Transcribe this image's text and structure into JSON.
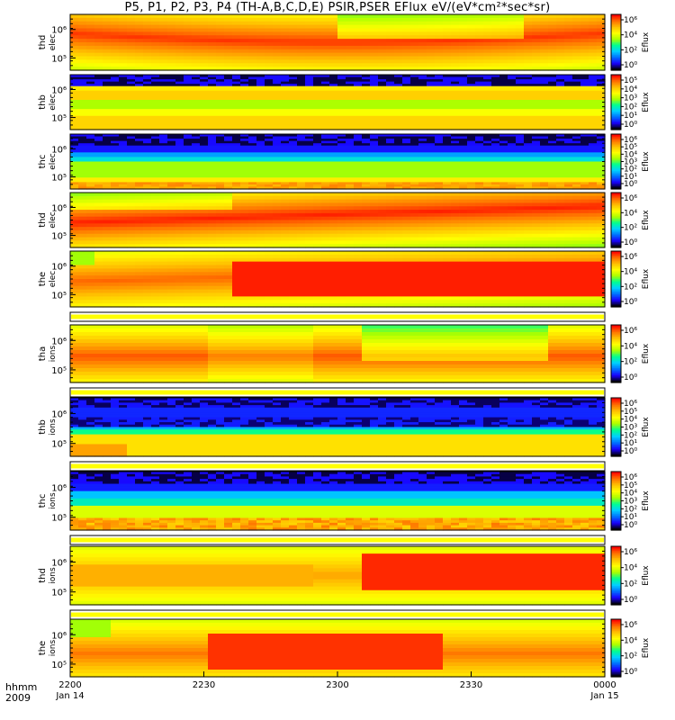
{
  "title": "P5, P1, P2, P3, P4 (TH-A,B,C,D,E) PSIR,PSER EFlux eV/(eV*cm²*sec*sr)",
  "colors": {
    "palette": [
      "#000000",
      "#1a00ff",
      "#0070ff",
      "#00d0ff",
      "#00ff90",
      "#aaff00",
      "#ffff00",
      "#ffc000",
      "#ff7000",
      "#ff0000"
    ]
  },
  "chart_data": {
    "type": "heatmap",
    "x_ticks": [
      "2200",
      "2230",
      "2300",
      "2330",
      "0000"
    ],
    "x_tick_sub": [
      "Jan 14",
      "",
      "",
      "",
      "Jan 15"
    ],
    "x_label_rows": [
      "hhmm",
      "2009"
    ],
    "colorbar_label": "Eflux",
    "panels": [
      {
        "ylabel": [
          "thd",
          "elec"
        ],
        "y_ticks": [
          "10⁶",
          "10⁵"
        ],
        "cbar_ticks": [
          "10⁶",
          "10⁴",
          "10²",
          "10⁰"
        ],
        "pattern": "elec-a",
        "bar_after": false
      },
      {
        "ylabel": [
          "thb",
          "elec"
        ],
        "y_ticks": [
          "10⁶",
          "10⁵"
        ],
        "cbar_ticks": [
          "10⁵",
          "10⁴",
          "10³",
          "10²",
          "10¹",
          "10⁰"
        ],
        "pattern": "noisy-b",
        "bar_after": false
      },
      {
        "ylabel": [
          "thc",
          "elec"
        ],
        "y_ticks": [
          "10⁶",
          "10⁵"
        ],
        "cbar_ticks": [
          "10⁶",
          "10⁵",
          "10⁴",
          "10³",
          "10²",
          "10¹",
          "10⁰"
        ],
        "pattern": "noisy-c",
        "bar_after": false
      },
      {
        "ylabel": [
          "thd",
          "elec"
        ],
        "y_ticks": [
          "10⁶",
          "10⁵"
        ],
        "cbar_ticks": [
          "10⁶",
          "10⁴",
          "10²",
          "10⁰"
        ],
        "pattern": "elec-d",
        "bar_after": false
      },
      {
        "ylabel": [
          "the",
          "elec"
        ],
        "y_ticks": [
          "10⁶",
          "10⁵"
        ],
        "cbar_ticks": [
          "10⁶",
          "10⁴",
          "10²",
          "10⁰"
        ],
        "pattern": "elec-e",
        "bar_after": true
      },
      {
        "ylabel": [
          "tha",
          "ions"
        ],
        "y_ticks": [
          "10⁶",
          "10⁵"
        ],
        "cbar_ticks": [
          "10⁶",
          "10⁴",
          "10²",
          "10⁰"
        ],
        "pattern": "ions-a",
        "bar_after": true
      },
      {
        "ylabel": [
          "thb",
          "ions"
        ],
        "y_ticks": [
          "10⁶",
          "10⁵"
        ],
        "cbar_ticks": [
          "10⁶",
          "10⁵",
          "10⁴",
          "10³",
          "10²",
          "10¹",
          "10⁰"
        ],
        "pattern": "noisy-ib",
        "bar_after": true
      },
      {
        "ylabel": [
          "thc",
          "ions"
        ],
        "y_ticks": [
          "10⁶",
          "10⁵"
        ],
        "cbar_ticks": [
          "10⁶",
          "10⁵",
          "10⁴",
          "10³",
          "10²",
          "10¹",
          "10⁰"
        ],
        "pattern": "noisy-ic",
        "bar_after": true
      },
      {
        "ylabel": [
          "thd",
          "ions"
        ],
        "y_ticks": [
          "10⁶",
          "10⁵"
        ],
        "cbar_ticks": [
          "10⁶",
          "10⁴",
          "10²",
          "10⁰"
        ],
        "pattern": "ions-d",
        "bar_after": true
      },
      {
        "ylabel": [
          "the",
          "ions"
        ],
        "y_ticks": [
          "10⁶",
          "10⁵"
        ],
        "cbar_ticks": [
          "10⁶",
          "10⁴",
          "10²",
          "10⁰"
        ],
        "pattern": "ions-e",
        "bar_after": false
      }
    ]
  }
}
